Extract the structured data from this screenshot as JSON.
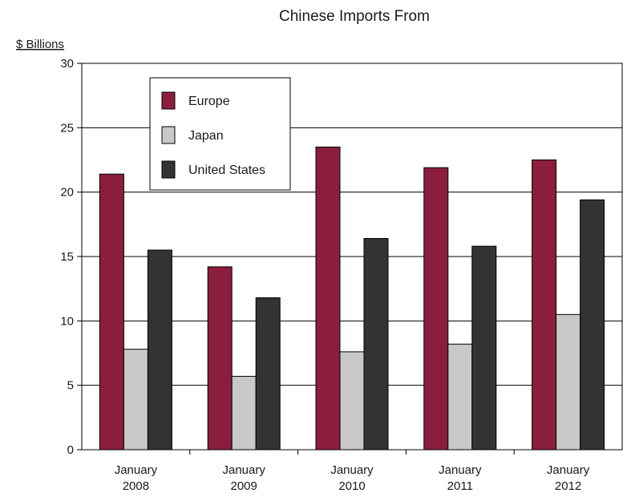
{
  "chart_data": {
    "type": "bar",
    "title": "Chinese Imports From",
    "ylabel": "$ Billions",
    "xlabel": "",
    "categories": [
      [
        "January",
        "2008"
      ],
      [
        "January",
        "2009"
      ],
      [
        "January",
        "2010"
      ],
      [
        "January",
        "2011"
      ],
      [
        "January",
        "2012"
      ]
    ],
    "series": [
      {
        "name": "Europe",
        "color": "#8b1e3f",
        "values": [
          21.4,
          14.2,
          23.5,
          21.9,
          22.5
        ]
      },
      {
        "name": "Japan",
        "color": "#c8c8c8",
        "values": [
          7.8,
          5.7,
          7.6,
          8.2,
          10.5
        ]
      },
      {
        "name": "United States",
        "color": "#333333",
        "values": [
          15.5,
          11.8,
          16.4,
          15.8,
          19.4
        ]
      }
    ],
    "ylim": [
      0,
      30
    ],
    "yticks": [
      0,
      5,
      10,
      15,
      20,
      25,
      30
    ],
    "grid": true,
    "legend_position": "top-left"
  }
}
